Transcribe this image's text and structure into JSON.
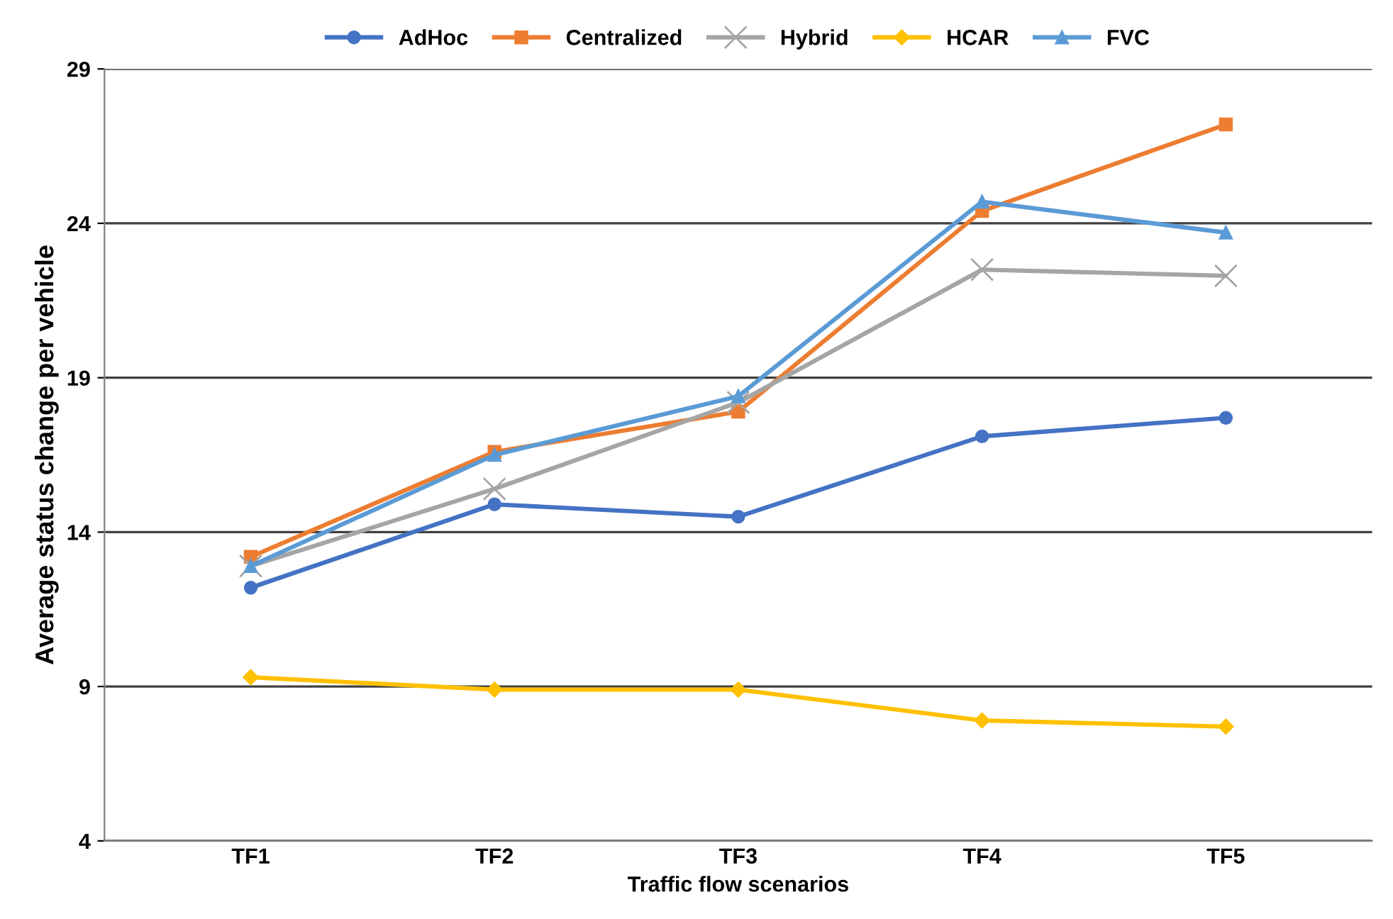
{
  "chart_data": {
    "type": "line",
    "xlabel": "Traffic flow scenarios",
    "ylabel": "Average status change per vehicle",
    "categories": [
      "TF1",
      "TF2",
      "TF3",
      "TF4",
      "TF5"
    ],
    "series": [
      {
        "name": "AdHoc",
        "color": "#4472c4",
        "marker": "circle",
        "values": [
          12.2,
          14.9,
          14.5,
          17.1,
          17.7
        ]
      },
      {
        "name": "Centralized",
        "color": "#ed7d31",
        "marker": "square",
        "values": [
          13.2,
          16.6,
          17.9,
          24.4,
          27.2
        ]
      },
      {
        "name": "Hybrid",
        "color": "#a5a5a5",
        "marker": "cross",
        "values": [
          12.9,
          15.4,
          18.2,
          22.5,
          22.3
        ]
      },
      {
        "name": "HCAR",
        "color": "#ffc000",
        "marker": "diamond",
        "values": [
          9.3,
          8.9,
          8.9,
          7.9,
          7.7
        ]
      },
      {
        "name": "FVC",
        "color": "#5b9bd5",
        "marker": "triangle",
        "values": [
          12.9,
          16.5,
          18.4,
          24.7,
          23.7
        ]
      }
    ],
    "ylim": [
      4,
      29
    ],
    "yticks": [
      4,
      9,
      14,
      19,
      24,
      29
    ],
    "grid": "y",
    "legend": "top"
  }
}
